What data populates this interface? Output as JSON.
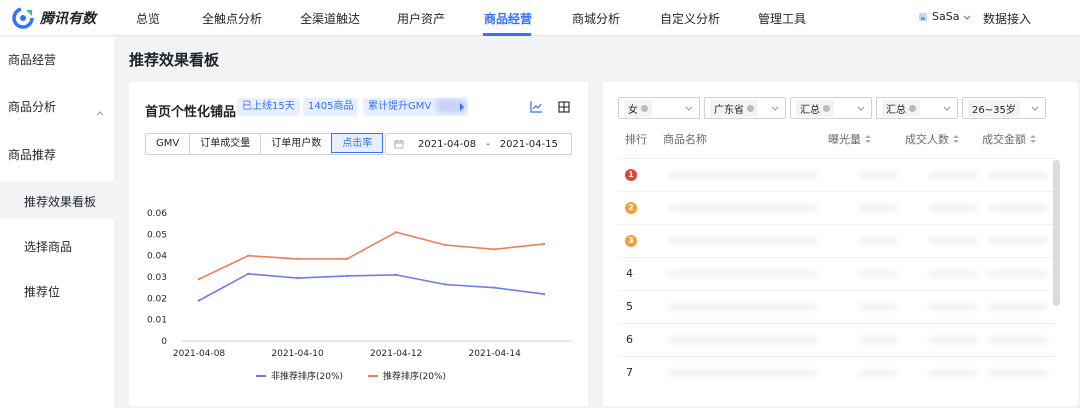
{
  "brand": {
    "name": "腾讯有数",
    "accent": "#3471ff"
  },
  "nav": {
    "items": [
      "总览",
      "全触点分析",
      "全渠道触达",
      "用户资产",
      "商品经营",
      "商城分析",
      "自定义分析",
      "管理工具"
    ],
    "active": "商品经营",
    "user": "SaSa",
    "connect": "数据接入"
  },
  "sidebar": {
    "items": [
      "商品经营",
      "商品分析",
      "商品推荐",
      "推荐效果看板",
      "选择商品",
      "推荐位"
    ],
    "active": "推荐效果看板"
  },
  "page": {
    "title": "推荐效果看板"
  },
  "left_card": {
    "title": "首页个性化铺品",
    "tags": [
      "已上线15天",
      "1405商品",
      "累计提升GMV"
    ],
    "metrics": [
      "GMV",
      "订单成交量",
      "订单用户数",
      "点击率"
    ],
    "active_metric": "点击率",
    "date_start": "2021-04-08",
    "date_sep": "-",
    "date_end": "2021-04-15"
  },
  "chart_data": {
    "type": "line",
    "x": [
      "2021-04-08",
      "2021-04-09",
      "2021-04-10",
      "2021-04-11",
      "2021-04-12",
      "2021-04-13",
      "2021-04-14",
      "2021-04-15"
    ],
    "x_tick_labels": [
      "2021-04-08",
      "2021-04-10",
      "2021-04-12",
      "2021-04-14"
    ],
    "y_tick_labels": [
      "0",
      "0.01",
      "0.02",
      "0.03",
      "0.04",
      "0.05",
      "0.06"
    ],
    "ylim": [
      0,
      0.06
    ],
    "grid": false,
    "legend_position": "bottom",
    "series": [
      {
        "name": "非推荐排序(20%)",
        "color": "#6c7cf0",
        "values": [
          0.019,
          0.0315,
          0.0295,
          0.0305,
          0.031,
          0.0265,
          0.025,
          0.022
        ]
      },
      {
        "name": "推荐排序(20%)",
        "color": "#f07c5c",
        "values": [
          0.029,
          0.04,
          0.0385,
          0.0385,
          0.051,
          0.045,
          0.043,
          0.0455
        ]
      }
    ]
  },
  "right_card": {
    "filters": [
      "女",
      "广东省",
      "汇总",
      "汇总",
      "26~35岁"
    ],
    "columns": [
      "排行",
      "商品名称",
      "曝光量",
      "成交人数",
      "成交金额"
    ],
    "ranks": [
      "1",
      "2",
      "3",
      "4",
      "5",
      "6",
      "7"
    ],
    "badge_colors": [
      "#e0433a",
      "#f0a03a",
      "#f0a03a"
    ]
  }
}
